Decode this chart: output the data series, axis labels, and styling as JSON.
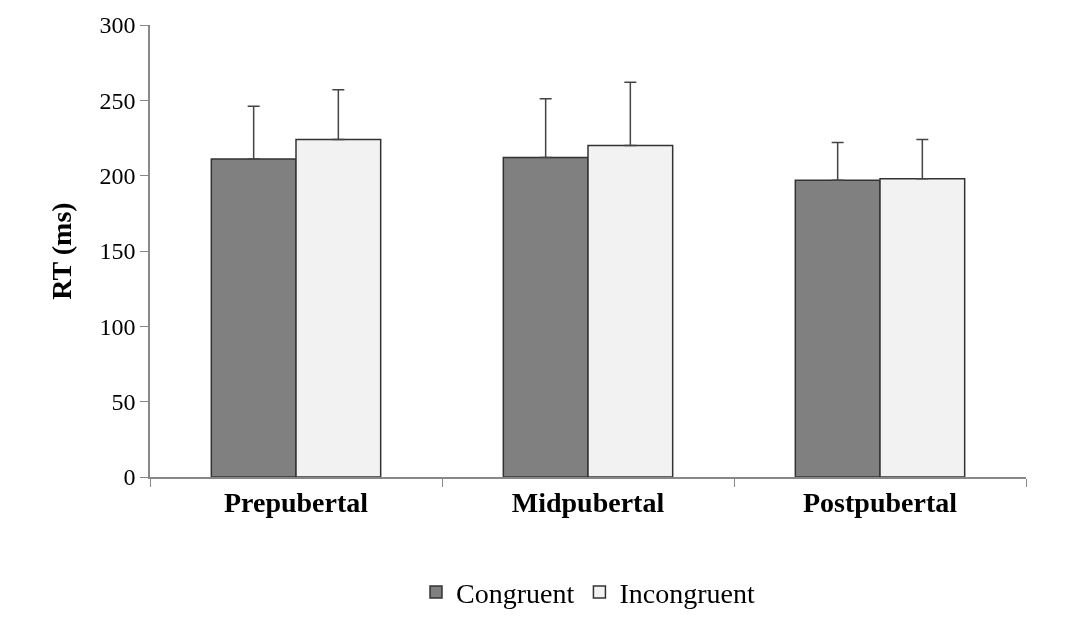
{
  "chart_data": {
    "type": "bar",
    "ylabel": "RT (ms)",
    "categories": [
      "Prepubertal",
      "Midpubertal",
      "Postpubertal"
    ],
    "series": [
      {
        "name": "Congruent",
        "color": "#808080",
        "values": [
          211,
          212,
          197
        ],
        "errors": [
          35,
          39,
          25
        ]
      },
      {
        "name": "Incongruent",
        "color": "#f2f2f2",
        "values": [
          224,
          220,
          198
        ],
        "errors": [
          33,
          42,
          26
        ]
      }
    ],
    "ylim": [
      0,
      300
    ],
    "yticks": [
      0,
      50,
      100,
      150,
      200,
      250,
      300
    ],
    "grid": false,
    "legend": "bottom"
  }
}
